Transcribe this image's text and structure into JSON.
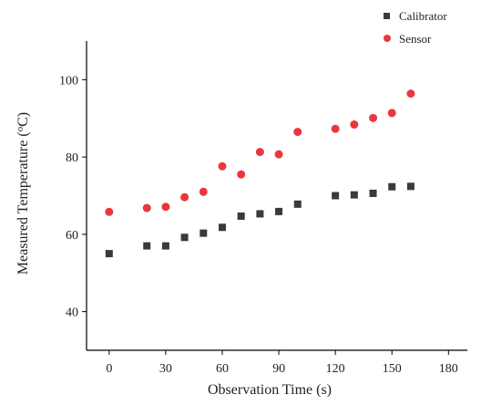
{
  "chart_data": {
    "type": "scatter",
    "title": "",
    "xlabel": "Observation Time (s)",
    "ylabel_main": "Measured Temperature (",
    "ylabel_sup": "o",
    "ylabel_tail": "C)",
    "xlim": [
      -12,
      190
    ],
    "ylim": [
      30,
      110
    ],
    "xticks": [
      0,
      30,
      60,
      90,
      120,
      150,
      180
    ],
    "yticks": [
      40,
      60,
      80,
      100
    ],
    "grid": false,
    "legend_position": "top-right",
    "series": [
      {
        "name": "Calibrator",
        "marker": "square",
        "color": "#3a3a3a",
        "points": [
          [
            0,
            55
          ],
          [
            20,
            57
          ],
          [
            30,
            57
          ],
          [
            40,
            59.2
          ],
          [
            50,
            60.3
          ],
          [
            60,
            61.8
          ],
          [
            70,
            64.7
          ],
          [
            80,
            65.3
          ],
          [
            90,
            65.9
          ],
          [
            100,
            67.8
          ],
          [
            120,
            70
          ],
          [
            130,
            70.2
          ],
          [
            140,
            70.6
          ],
          [
            150,
            72.3
          ],
          [
            160,
            72.4
          ]
        ]
      },
      {
        "name": "Sensor",
        "marker": "circle",
        "color": "#e8383d",
        "points": [
          [
            0,
            65.8
          ],
          [
            20,
            66.8
          ],
          [
            30,
            67.1
          ],
          [
            40,
            69.6
          ],
          [
            50,
            71
          ],
          [
            60,
            77.6
          ],
          [
            70,
            75.5
          ],
          [
            80,
            81.3
          ],
          [
            90,
            80.7
          ],
          [
            100,
            86.5
          ],
          [
            120,
            87.3
          ],
          [
            130,
            88.4
          ],
          [
            140,
            90.1
          ],
          [
            150,
            91.4
          ],
          [
            160,
            96.4
          ]
        ]
      }
    ]
  }
}
